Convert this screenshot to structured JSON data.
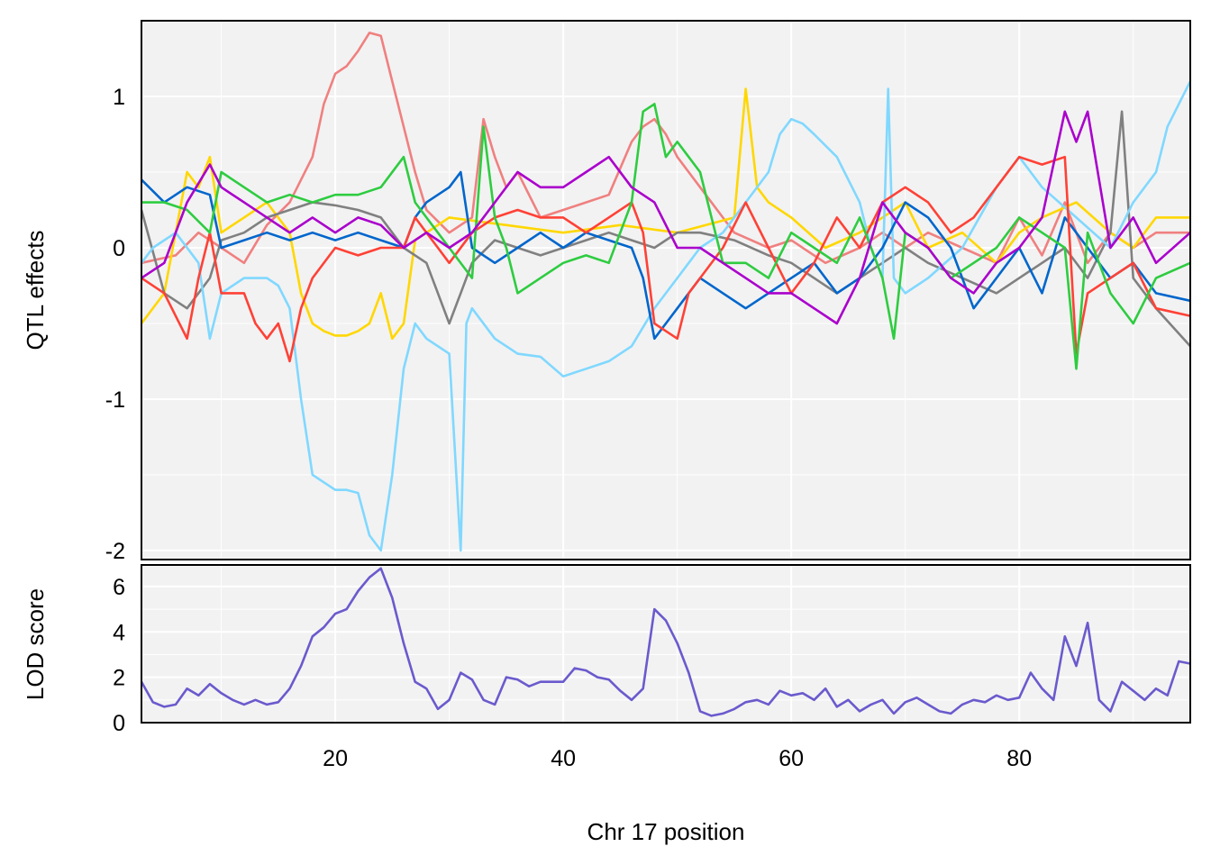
{
  "chart_data": [
    {
      "type": "line",
      "title": "",
      "xlabel": "",
      "ylabel": "QTL effects",
      "xlim": [
        3,
        95
      ],
      "ylim": [
        -2.06,
        1.5
      ],
      "x_ticks": [
        20,
        40,
        60,
        80
      ],
      "y_ticks": [
        1,
        0,
        -1,
        -2
      ],
      "y_tick_labels": [
        "1",
        "0",
        "-1",
        "-2"
      ],
      "grid": true,
      "legend": "none",
      "series": [
        {
          "color": "#F08080",
          "x": [
            3,
            6,
            8,
            10,
            12,
            14,
            16,
            18,
            19,
            20,
            21,
            22,
            23,
            24,
            25,
            26,
            27,
            28,
            30,
            32,
            33,
            34,
            35,
            36,
            38,
            40,
            42,
            44,
            46,
            47,
            48,
            49,
            50,
            52,
            55,
            58,
            60,
            63,
            66,
            68,
            70,
            72,
            75,
            78,
            80,
            82,
            84,
            86,
            88,
            90,
            92,
            95
          ],
          "y": [
            -0.1,
            -0.05,
            0.1,
            0.0,
            -0.1,
            0.15,
            0.3,
            0.6,
            0.95,
            1.15,
            1.2,
            1.3,
            1.42,
            1.4,
            1.1,
            0.8,
            0.5,
            0.25,
            0.1,
            0.2,
            0.85,
            0.6,
            0.4,
            0.5,
            0.2,
            0.25,
            0.3,
            0.35,
            0.7,
            0.8,
            0.85,
            0.75,
            0.6,
            0.4,
            0.1,
            0.0,
            0.05,
            -0.1,
            0.0,
            0.1,
            0.0,
            0.1,
            0.0,
            -0.1,
            0.2,
            -0.05,
            0.3,
            -0.1,
            0.1,
            0.0,
            0.1,
            0.1
          ]
        },
        {
          "color": "#FFD700",
          "x": [
            3,
            5,
            7,
            8,
            9,
            10,
            12,
            14,
            15,
            16,
            17,
            18,
            19,
            20,
            21,
            22,
            23,
            24,
            25,
            26,
            27,
            28,
            30,
            35,
            40,
            45,
            50,
            55,
            56,
            57,
            58,
            60,
            63,
            66,
            68,
            70,
            72,
            75,
            78,
            80,
            82,
            85,
            88,
            90,
            92,
            95
          ],
          "y": [
            -0.5,
            -0.3,
            0.5,
            0.4,
            0.6,
            0.1,
            0.2,
            0.3,
            0.2,
            0.1,
            -0.3,
            -0.5,
            -0.55,
            -0.58,
            -0.58,
            -0.55,
            -0.5,
            -0.3,
            -0.6,
            -0.5,
            0.05,
            0.1,
            0.2,
            0.15,
            0.1,
            0.15,
            0.1,
            0.2,
            1.05,
            0.4,
            0.3,
            0.2,
            0.0,
            0.1,
            0.2,
            0.3,
            0.0,
            0.1,
            -0.1,
            0.1,
            0.2,
            0.3,
            0.1,
            0.0,
            0.2,
            0.2
          ]
        },
        {
          "color": "#808080",
          "x": [
            3,
            5,
            7,
            9,
            10,
            12,
            14,
            16,
            18,
            20,
            22,
            24,
            26,
            28,
            29,
            30,
            31,
            32,
            34,
            36,
            38,
            40,
            42,
            44,
            46,
            48,
            50,
            52,
            55,
            58,
            60,
            62,
            64,
            66,
            68,
            70,
            72,
            75,
            78,
            80,
            82,
            84,
            86,
            88,
            89,
            90,
            92,
            95
          ],
          "y": [
            0.25,
            -0.3,
            -0.4,
            -0.2,
            0.05,
            0.1,
            0.2,
            0.25,
            0.3,
            0.28,
            0.25,
            0.2,
            0.0,
            -0.1,
            -0.3,
            -0.5,
            -0.3,
            -0.1,
            0.05,
            0.0,
            -0.05,
            0.0,
            0.05,
            0.1,
            0.05,
            0.0,
            0.1,
            0.1,
            0.05,
            -0.05,
            -0.1,
            -0.2,
            -0.3,
            -0.2,
            -0.1,
            0.0,
            -0.1,
            -0.2,
            -0.3,
            -0.2,
            -0.1,
            0.0,
            -0.2,
            0.1,
            0.9,
            -0.2,
            -0.4,
            -0.65
          ]
        },
        {
          "color": "#80D8FF",
          "x": [
            3,
            4,
            6,
            8,
            9,
            10,
            12,
            14,
            15,
            16,
            17,
            18,
            19,
            20,
            21,
            22,
            23,
            24,
            25,
            26,
            27,
            28,
            30,
            31,
            31.5,
            32,
            34,
            36,
            38,
            40,
            42,
            44,
            46,
            48,
            49,
            50,
            52,
            54,
            56,
            58,
            59,
            60,
            61,
            62,
            64,
            66,
            67,
            68,
            68.5,
            69,
            70,
            72,
            75,
            78,
            80,
            82,
            85,
            88,
            90,
            92,
            93,
            95
          ],
          "y": [
            -0.1,
            0.0,
            0.1,
            -0.1,
            -0.6,
            -0.3,
            -0.2,
            -0.2,
            -0.25,
            -0.4,
            -1.0,
            -1.5,
            -1.55,
            -1.6,
            -1.6,
            -1.62,
            -1.9,
            -2.0,
            -1.5,
            -0.8,
            -0.5,
            -0.6,
            -0.7,
            -2.0,
            -0.5,
            -0.4,
            -0.6,
            -0.7,
            -0.72,
            -0.85,
            -0.8,
            -0.75,
            -0.65,
            -0.4,
            -0.3,
            -0.2,
            0.0,
            0.1,
            0.3,
            0.5,
            0.75,
            0.85,
            0.82,
            0.75,
            0.6,
            0.3,
            0.0,
            -0.2,
            1.05,
            -0.2,
            -0.3,
            -0.2,
            0.0,
            0.4,
            0.6,
            0.4,
            0.2,
            0.0,
            0.3,
            0.5,
            0.8,
            1.1
          ]
        },
        {
          "color": "#0066CC",
          "x": [
            3,
            5,
            7,
            9,
            10,
            12,
            14,
            16,
            18,
            20,
            22,
            24,
            26,
            27,
            28,
            30,
            31,
            32,
            34,
            36,
            38,
            40,
            42,
            44,
            46,
            47,
            48,
            49,
            50,
            52,
            54,
            56,
            58,
            60,
            62,
            64,
            66,
            68,
            70,
            72,
            74,
            76,
            78,
            80,
            82,
            84,
            86,
            88,
            90,
            92,
            95
          ],
          "y": [
            0.45,
            0.3,
            0.4,
            0.35,
            0.0,
            0.05,
            0.1,
            0.05,
            0.1,
            0.05,
            0.1,
            0.05,
            0.0,
            0.2,
            0.3,
            0.4,
            0.5,
            0.0,
            -0.1,
            0.0,
            0.1,
            0.0,
            0.1,
            0.05,
            0.0,
            -0.2,
            -0.6,
            -0.5,
            -0.4,
            -0.2,
            -0.3,
            -0.4,
            -0.3,
            -0.2,
            -0.1,
            -0.3,
            -0.2,
            0.0,
            0.3,
            0.2,
            0.0,
            -0.4,
            -0.2,
            0.0,
            -0.3,
            0.2,
            0.0,
            -0.2,
            -0.1,
            -0.3,
            -0.35
          ]
        },
        {
          "color": "#FF4136",
          "x": [
            3,
            5,
            7,
            8,
            9,
            10,
            12,
            13,
            14,
            15,
            16,
            17,
            18,
            20,
            22,
            24,
            26,
            27,
            28,
            29,
            30,
            32,
            34,
            36,
            38,
            40,
            42,
            44,
            46,
            47,
            48,
            49,
            50,
            51,
            52,
            54,
            56,
            58,
            60,
            62,
            64,
            66,
            68,
            70,
            72,
            74,
            76,
            78,
            80,
            82,
            84,
            85,
            86,
            88,
            90,
            92,
            95
          ],
          "y": [
            -0.2,
            -0.3,
            -0.6,
            -0.2,
            0.1,
            -0.3,
            -0.3,
            -0.5,
            -0.6,
            -0.5,
            -0.75,
            -0.4,
            -0.2,
            0.0,
            -0.05,
            0.0,
            0.0,
            0.2,
            0.1,
            0.0,
            -0.1,
            0.1,
            0.2,
            0.25,
            0.2,
            0.2,
            0.1,
            0.2,
            0.3,
            0.1,
            -0.5,
            -0.55,
            -0.6,
            -0.3,
            -0.2,
            0.0,
            0.3,
            0.0,
            -0.3,
            -0.1,
            0.2,
            0.0,
            0.3,
            0.4,
            0.3,
            0.1,
            0.2,
            0.4,
            0.6,
            0.55,
            0.6,
            -0.7,
            -0.3,
            -0.2,
            -0.1,
            -0.4,
            -0.45
          ]
        },
        {
          "color": "#2ECC40",
          "x": [
            3,
            5,
            7,
            9,
            10,
            12,
            14,
            16,
            18,
            20,
            22,
            24,
            26,
            27,
            28,
            30,
            32,
            33,
            34,
            35,
            36,
            38,
            40,
            42,
            44,
            46,
            47,
            48,
            49,
            50,
            52,
            54,
            56,
            58,
            60,
            62,
            64,
            66,
            68,
            69,
            70,
            72,
            74,
            76,
            78,
            80,
            82,
            84,
            85,
            86,
            88,
            90,
            92,
            95
          ],
          "y": [
            0.3,
            0.3,
            0.25,
            0.1,
            0.5,
            0.4,
            0.3,
            0.35,
            0.3,
            0.35,
            0.35,
            0.4,
            0.6,
            0.3,
            0.2,
            0.0,
            -0.2,
            0.8,
            0.2,
            0.0,
            -0.3,
            -0.2,
            -0.1,
            -0.05,
            -0.1,
            0.3,
            0.9,
            0.95,
            0.6,
            0.7,
            0.5,
            -0.1,
            -0.1,
            -0.2,
            0.1,
            0.0,
            -0.1,
            0.2,
            -0.2,
            -0.6,
            0.1,
            0.0,
            -0.2,
            -0.1,
            0.0,
            0.2,
            0.1,
            0.0,
            -0.8,
            0.1,
            -0.3,
            -0.5,
            -0.2,
            -0.1
          ]
        },
        {
          "color": "#AA00CC",
          "x": [
            3,
            5,
            7,
            9,
            10,
            12,
            14,
            16,
            18,
            20,
            22,
            24,
            26,
            28,
            30,
            32,
            34,
            36,
            38,
            40,
            42,
            44,
            46,
            48,
            50,
            52,
            54,
            56,
            58,
            60,
            62,
            64,
            66,
            68,
            70,
            72,
            74,
            76,
            78,
            80,
            82,
            84,
            85,
            86,
            88,
            90,
            92,
            95
          ],
          "y": [
            -0.2,
            -0.1,
            0.3,
            0.55,
            0.4,
            0.3,
            0.2,
            0.1,
            0.2,
            0.1,
            0.2,
            0.15,
            0.0,
            0.1,
            0.0,
            0.1,
            0.3,
            0.5,
            0.4,
            0.4,
            0.5,
            0.6,
            0.4,
            0.3,
            0.0,
            0.0,
            -0.1,
            -0.2,
            -0.3,
            -0.3,
            -0.4,
            -0.5,
            -0.2,
            0.3,
            0.1,
            0.0,
            -0.2,
            -0.3,
            -0.1,
            0.0,
            0.2,
            0.9,
            0.7,
            0.9,
            0.0,
            0.2,
            -0.1,
            0.1
          ]
        }
      ]
    },
    {
      "type": "line",
      "title": "",
      "xlabel": "Chr 17 position",
      "ylabel": "LOD score",
      "xlim": [
        3,
        95
      ],
      "ylim": [
        0,
        6.95
      ],
      "x_ticks": [
        20,
        40,
        60,
        80
      ],
      "x_tick_labels": [
        "20",
        "40",
        "60",
        "80"
      ],
      "y_ticks": [
        0,
        2,
        4,
        6
      ],
      "y_tick_labels": [
        "0",
        "2",
        "4",
        "6"
      ],
      "grid": true,
      "legend": "none",
      "series": [
        {
          "color": "#6A5ACD",
          "x": [
            3,
            4,
            5,
            6,
            7,
            8,
            9,
            10,
            11,
            12,
            13,
            14,
            15,
            16,
            17,
            18,
            19,
            20,
            21,
            22,
            23,
            24,
            25,
            26,
            27,
            28,
            29,
            30,
            31,
            32,
            33,
            34,
            35,
            36,
            37,
            38,
            39,
            40,
            41,
            42,
            43,
            44,
            45,
            46,
            47,
            48,
            49,
            50,
            51,
            52,
            53,
            54,
            55,
            56,
            57,
            58,
            59,
            60,
            61,
            62,
            63,
            64,
            65,
            66,
            67,
            68,
            69,
            70,
            71,
            72,
            73,
            74,
            75,
            76,
            77,
            78,
            79,
            80,
            81,
            82,
            83,
            84,
            85,
            86,
            87,
            88,
            89,
            90,
            91,
            92,
            93,
            94,
            95
          ],
          "y": [
            1.8,
            0.9,
            0.7,
            0.8,
            1.5,
            1.2,
            1.7,
            1.3,
            1.0,
            0.8,
            1.0,
            0.8,
            0.9,
            1.5,
            2.5,
            3.8,
            4.2,
            4.8,
            5.0,
            5.8,
            6.4,
            6.8,
            5.5,
            3.5,
            1.8,
            1.5,
            0.6,
            1.0,
            2.2,
            1.9,
            1.0,
            0.8,
            2.0,
            1.9,
            1.6,
            1.8,
            1.8,
            1.8,
            2.4,
            2.3,
            2.0,
            1.9,
            1.4,
            1.0,
            1.5,
            5.0,
            4.5,
            3.5,
            2.2,
            0.5,
            0.3,
            0.4,
            0.6,
            0.9,
            1.0,
            0.8,
            1.4,
            1.2,
            1.3,
            1.0,
            1.5,
            0.7,
            1.0,
            0.5,
            0.8,
            1.0,
            0.4,
            0.9,
            1.1,
            0.8,
            0.5,
            0.4,
            0.8,
            1.0,
            0.9,
            1.2,
            1.0,
            1.1,
            2.2,
            1.5,
            1.0,
            3.8,
            2.5,
            4.4,
            1.0,
            0.5,
            1.8,
            1.4,
            1.0,
            1.5,
            1.2,
            2.7,
            2.6
          ]
        }
      ]
    }
  ]
}
